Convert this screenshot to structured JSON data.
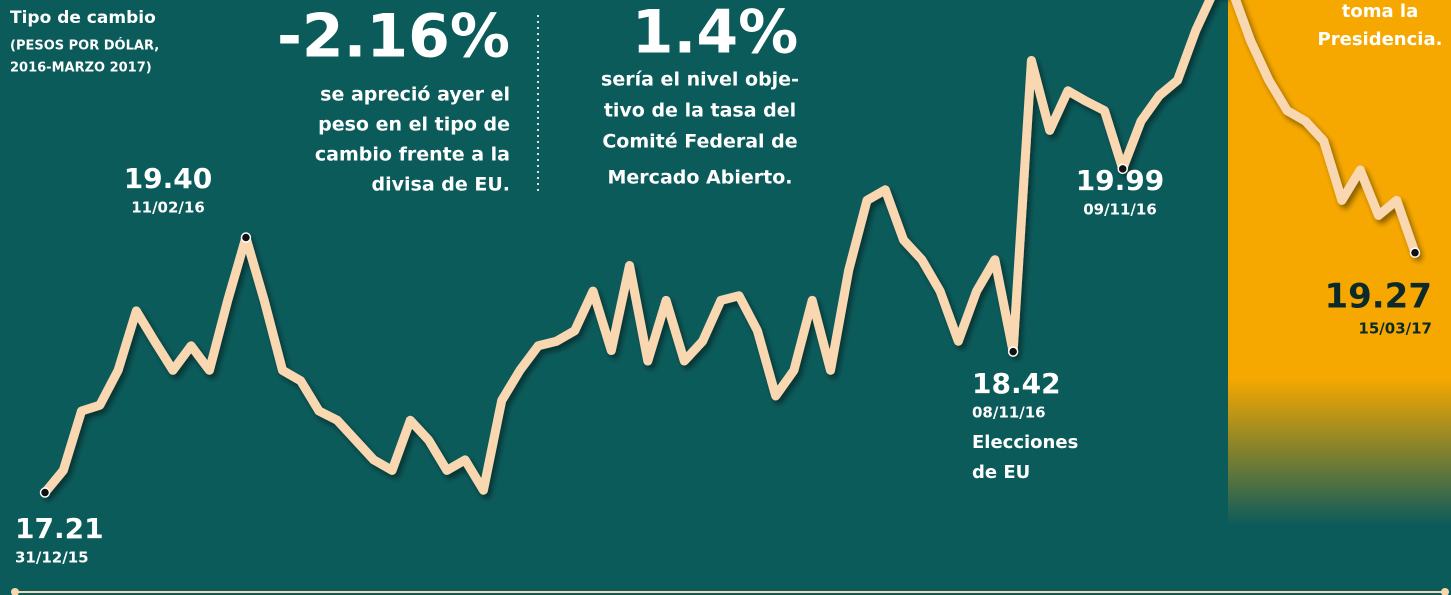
{
  "chart_data": {
    "type": "line",
    "title": "Tipo de cambio",
    "subtitle": [
      "(PESOS POR DÓLAR,",
      "2016-MARZO 2017)"
    ],
    "callouts": [
      {
        "headline": "-2.16%",
        "text": [
          "se apreció ayer  el",
          "peso en el tipo de",
          "cambio frente a la",
          "divisa de EU."
        ]
      },
      {
        "headline": "1.4%",
        "text": [
          "sería el nivel obje-",
          "tivo de la tasa del",
          "Comité Federal de",
          "Mercado Abierto."
        ]
      }
    ],
    "note": [
      "toma la",
      "Presidencia."
    ],
    "ylim": [
      16.33,
      21.44
    ],
    "series": [
      {
        "name": "Tipo de cambio",
        "color": "#f9d7b0",
        "values": [
          17.21,
          17.4,
          17.91,
          17.96,
          18.26,
          18.77,
          18.51,
          18.26,
          18.47,
          18.26,
          18.86,
          19.4,
          18.86,
          18.26,
          18.17,
          17.91,
          17.83,
          17.66,
          17.49,
          17.4,
          17.83,
          17.66,
          17.4,
          17.49,
          17.23,
          18.0,
          18.26,
          18.47,
          18.51,
          18.6,
          18.94,
          18.43,
          19.16,
          18.34,
          18.86,
          18.34,
          18.51,
          18.86,
          18.9,
          18.6,
          18.04,
          18.26,
          18.86,
          18.26,
          19.12,
          19.72,
          19.81,
          19.38,
          19.21,
          18.94,
          18.51,
          18.94,
          19.21,
          18.42,
          20.92,
          20.32,
          20.66,
          20.57,
          20.49,
          19.99,
          20.4,
          20.62,
          20.75,
          21.18,
          21.52,
          21.52,
          21.09,
          20.75,
          20.49,
          20.4,
          20.23,
          19.72,
          19.98,
          19.59,
          19.72,
          19.27
        ]
      }
    ],
    "annotations": [
      {
        "value": 17.21,
        "label": "17.21",
        "date": "31/12/15"
      },
      {
        "value": 19.4,
        "label": "19.40",
        "date": "11/02/16"
      },
      {
        "value": 18.42,
        "label": "18.42",
        "date": "08/11/16",
        "text": [
          "Elecciones",
          "de EU"
        ]
      },
      {
        "value": 19.99,
        "label": "19.99",
        "date": "09/11/16"
      },
      {
        "value": 19.27,
        "label": "19.27",
        "date": "15/03/17"
      }
    ]
  }
}
